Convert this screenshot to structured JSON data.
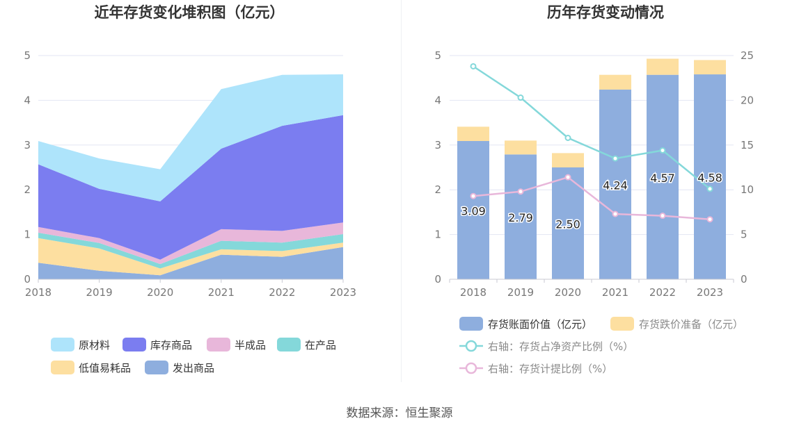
{
  "left_chart": {
    "title": "近年存货变化堆积图（亿元）"
  },
  "right_chart": {
    "title": "历年存货变动情况"
  },
  "source": "数据来源：恒生聚源",
  "chart_data": [
    {
      "type": "area",
      "title": "近年存货变化堆积图（亿元）",
      "stacked": true,
      "x": [
        "2018",
        "2019",
        "2020",
        "2021",
        "2022",
        "2023"
      ],
      "ylim": [
        0,
        5
      ],
      "yticks": [
        0,
        1,
        2,
        3,
        4,
        5
      ],
      "grid": true,
      "legend_position": "bottom",
      "series_order_bottom_to_top": [
        "发出商品",
        "低值易耗品",
        "在产品",
        "半成品",
        "库存商品",
        "原材料"
      ],
      "series": [
        {
          "name": "原材料",
          "color": "#aee4fb",
          "values": [
            0.52,
            0.68,
            0.72,
            1.33,
            1.14,
            0.91
          ]
        },
        {
          "name": "库存商品",
          "color": "#7b7df0",
          "values": [
            1.4,
            1.1,
            1.3,
            1.8,
            2.35,
            2.4
          ]
        },
        {
          "name": "半成品",
          "color": "#e8b7da",
          "values": [
            0.13,
            0.11,
            0.1,
            0.26,
            0.26,
            0.26
          ]
        },
        {
          "name": "在产品",
          "color": "#84d8da",
          "values": [
            0.12,
            0.12,
            0.1,
            0.19,
            0.19,
            0.19
          ]
        },
        {
          "name": "低值易耗品",
          "color": "#fddfa0",
          "values": [
            0.55,
            0.5,
            0.15,
            0.12,
            0.13,
            0.1
          ]
        },
        {
          "name": "发出商品",
          "color": "#8eaede",
          "values": [
            0.37,
            0.19,
            0.09,
            0.55,
            0.5,
            0.72
          ]
        }
      ]
    },
    {
      "type": "bar",
      "title": "历年存货变动情况",
      "stacked": true,
      "categories": [
        "2018",
        "2019",
        "2020",
        "2021",
        "2022",
        "2023"
      ],
      "ylim": [
        0,
        5
      ],
      "yticks": [
        0,
        1,
        2,
        3,
        4,
        5
      ],
      "y2lim": [
        0,
        25
      ],
      "y2ticks": [
        0,
        5,
        10,
        15,
        20,
        25
      ],
      "grid": true,
      "legend_position": "bottom",
      "series": [
        {
          "name": "存货账面价值（亿元）",
          "axis": "left",
          "kind": "bar",
          "color": "#8eaede",
          "values": [
            3.09,
            2.79,
            2.5,
            4.24,
            4.57,
            4.58
          ],
          "labels": [
            "3.09",
            "2.79",
            "2.50",
            "4.24",
            "4.57",
            "4.58"
          ]
        },
        {
          "name": "存货跌价准备（亿元）",
          "axis": "left",
          "kind": "bar",
          "color": "#fddfa0",
          "values": [
            0.32,
            0.31,
            0.32,
            0.33,
            0.36,
            0.32
          ]
        },
        {
          "name": "右轴：存货占净资产比例（%）",
          "axis": "right",
          "kind": "line",
          "color": "#84d8da",
          "values": [
            23.8,
            20.3,
            15.8,
            13.5,
            14.4,
            10.1
          ]
        },
        {
          "name": "右轴：存货计提比例（%）",
          "axis": "right",
          "kind": "line",
          "color": "#e8b7da",
          "values": [
            9.3,
            9.8,
            11.4,
            7.3,
            7.1,
            6.7
          ]
        }
      ]
    }
  ]
}
